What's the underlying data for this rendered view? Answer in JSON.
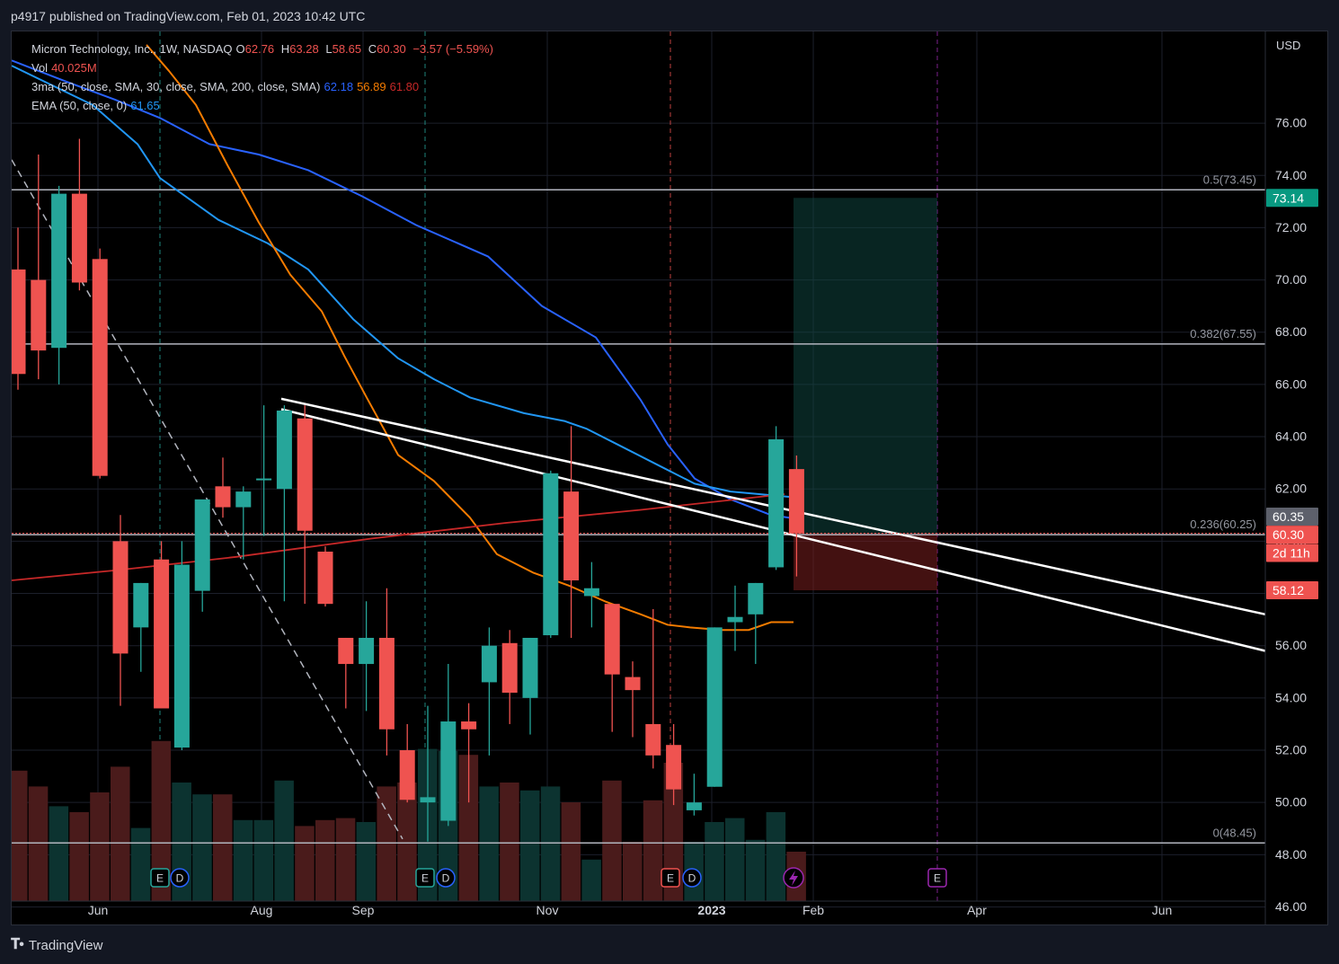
{
  "header": {
    "published": "p4917 published on TradingView.com, Feb 01, 2023 10:42 UTC"
  },
  "footer": {
    "brand": "TradingView"
  },
  "legend": {
    "symbol": "Micron Technology, Inc., 1W, NASDAQ",
    "o_label": "O",
    "o": "62.76",
    "h_label": "H",
    "h": "63.28",
    "l_label": "L",
    "l": "58.65",
    "c_label": "C",
    "c": "60.30",
    "change": "−3.57 (−5.59%)",
    "vol_label": "Vol",
    "vol": "40.025M",
    "ma_label": "3ma (50, close, SMA, 30, close, SMA, 200, close, SMA)",
    "ma_values": [
      "62.18",
      "56.89",
      "61.80"
    ],
    "ema_label": "EMA (50, close, 0)",
    "ema_value": "61.65"
  },
  "colors": {
    "up": "#26a69a",
    "down": "#ef5350",
    "sma50": "#2962ff",
    "sma30": "#f57c00",
    "sma200": "#c62828",
    "ema50": "#2196f3"
  },
  "chart_data": {
    "type": "candlestick",
    "currency": "USD",
    "yticks": [
      "76.00",
      "74.00",
      "72.00",
      "70.00",
      "68.00",
      "66.00",
      "64.00",
      "62.00",
      "60.00",
      "58.00",
      "56.00",
      "54.00",
      "52.00",
      "50.00",
      "48.00",
      "46.00"
    ],
    "ylim": [
      46,
      79
    ],
    "xticks": [
      "Jun",
      "Aug",
      "Sep",
      "Nov",
      "2023",
      "Feb",
      "Apr",
      "Jun"
    ],
    "candles": [
      {
        "o": 70.4,
        "h": 72.0,
        "l": 65.8,
        "c": 66.4
      },
      {
        "o": 70.0,
        "h": 74.8,
        "l": 66.2,
        "c": 67.3
      },
      {
        "o": 67.4,
        "h": 73.6,
        "l": 66.0,
        "c": 73.3
      },
      {
        "o": 73.3,
        "h": 75.4,
        "l": 69.6,
        "c": 69.9
      },
      {
        "o": 70.8,
        "h": 71.2,
        "l": 62.4,
        "c": 62.5
      },
      {
        "o": 60.0,
        "h": 61.0,
        "l": 53.7,
        "c": 55.7
      },
      {
        "o": 56.7,
        "h": 58.4,
        "l": 55.0,
        "c": 58.4
      },
      {
        "o": 59.3,
        "h": 60.0,
        "l": 53.6,
        "c": 53.6
      },
      {
        "o": 52.1,
        "h": 60.0,
        "l": 52.0,
        "c": 59.1
      },
      {
        "o": 58.1,
        "h": 61.4,
        "l": 57.3,
        "c": 61.6
      },
      {
        "o": 62.1,
        "h": 63.2,
        "l": 60.9,
        "c": 61.3
      },
      {
        "o": 61.3,
        "h": 62.1,
        "l": 59.3,
        "c": 61.9
      },
      {
        "o": 62.4,
        "h": 65.2,
        "l": 60.2,
        "c": 62.4
      },
      {
        "o": 62.0,
        "h": 65.2,
        "l": 57.7,
        "c": 65.0
      },
      {
        "o": 64.7,
        "h": 65.2,
        "l": 57.6,
        "c": 60.4
      },
      {
        "o": 59.6,
        "h": 59.8,
        "l": 57.5,
        "c": 57.6
      },
      {
        "o": 56.3,
        "h": 56.3,
        "l": 53.6,
        "c": 55.3
      },
      {
        "o": 55.3,
        "h": 57.7,
        "l": 53.5,
        "c": 56.3
      },
      {
        "o": 56.3,
        "h": 58.2,
        "l": 51.8,
        "c": 52.8
      },
      {
        "o": 52.0,
        "h": 53.0,
        "l": 50.0,
        "c": 50.1
      },
      {
        "o": 50.0,
        "h": 53.7,
        "l": 48.5,
        "c": 50.2
      },
      {
        "o": 49.3,
        "h": 55.3,
        "l": 49.1,
        "c": 53.1
      },
      {
        "o": 53.1,
        "h": 53.8,
        "l": 50.0,
        "c": 52.8
      },
      {
        "o": 54.6,
        "h": 56.7,
        "l": 51.8,
        "c": 56.0
      },
      {
        "o": 56.1,
        "h": 56.6,
        "l": 53.0,
        "c": 54.2
      },
      {
        "o": 54.0,
        "h": 56.3,
        "l": 52.6,
        "c": 56.3
      },
      {
        "o": 56.4,
        "h": 62.7,
        "l": 56.3,
        "c": 62.6
      },
      {
        "o": 61.9,
        "h": 64.4,
        "l": 56.3,
        "c": 58.5
      },
      {
        "o": 57.9,
        "h": 59.2,
        "l": 56.7,
        "c": 58.2
      },
      {
        "o": 57.6,
        "h": 57.6,
        "l": 52.7,
        "c": 54.9
      },
      {
        "o": 54.8,
        "h": 55.4,
        "l": 52.5,
        "c": 54.3
      },
      {
        "o": 53.0,
        "h": 57.4,
        "l": 51.3,
        "c": 51.8
      },
      {
        "o": 52.2,
        "h": 53.0,
        "l": 49.9,
        "c": 50.5
      },
      {
        "o": 49.7,
        "h": 51.1,
        "l": 49.5,
        "c": 50.0
      },
      {
        "o": 50.6,
        "h": 56.7,
        "l": 50.6,
        "c": 56.7
      },
      {
        "o": 56.9,
        "h": 58.3,
        "l": 55.8,
        "c": 57.1
      },
      {
        "o": 57.2,
        "h": 58.4,
        "l": 55.3,
        "c": 58.4
      },
      {
        "o": 59.0,
        "h": 64.4,
        "l": 58.9,
        "c": 63.9
      },
      {
        "o": 62.76,
        "h": 63.28,
        "l": 58.65,
        "c": 60.3
      }
    ],
    "volume_rel": [
      0.66,
      0.58,
      0.48,
      0.45,
      0.55,
      0.68,
      0.37,
      0.81,
      0.6,
      0.54,
      0.54,
      0.41,
      0.41,
      0.61,
      0.38,
      0.41,
      0.42,
      0.4,
      0.58,
      0.6,
      0.77,
      0.76,
      0.74,
      0.58,
      0.6,
      0.56,
      0.58,
      0.5,
      0.21,
      0.61,
      0.3,
      0.51,
      0.7,
      0.3,
      0.4,
      0.42,
      0.31,
      0.45,
      0.25
    ],
    "sma200_ends": [
      58.5,
      61.8
    ],
    "fib": [
      {
        "label": "0.5(73.45)",
        "v": 73.45
      },
      {
        "label": "0.382(67.55)",
        "v": 67.55
      },
      {
        "label": "0.236(60.25)",
        "v": 60.25
      },
      {
        "label": "0(48.45)",
        "v": 48.45
      }
    ],
    "price_badges": [
      {
        "text": "73.14",
        "v": 73.14,
        "color": "#089981"
      },
      {
        "text": "60.35",
        "v": 60.94,
        "color": "#5d606b"
      },
      {
        "text": "60.30",
        "v": 60.25,
        "color": "#ef5350"
      },
      {
        "text": "2d 11h",
        "v": 59.55,
        "color": "#ef5350"
      },
      {
        "text": "58.12",
        "v": 58.12,
        "color": "#ef5350"
      }
    ],
    "position": {
      "entry": 60.3,
      "target": 73.14,
      "stop": 58.12
    },
    "event_markers": [
      "E",
      "D",
      "E",
      "D",
      "E",
      "D",
      "E"
    ]
  }
}
